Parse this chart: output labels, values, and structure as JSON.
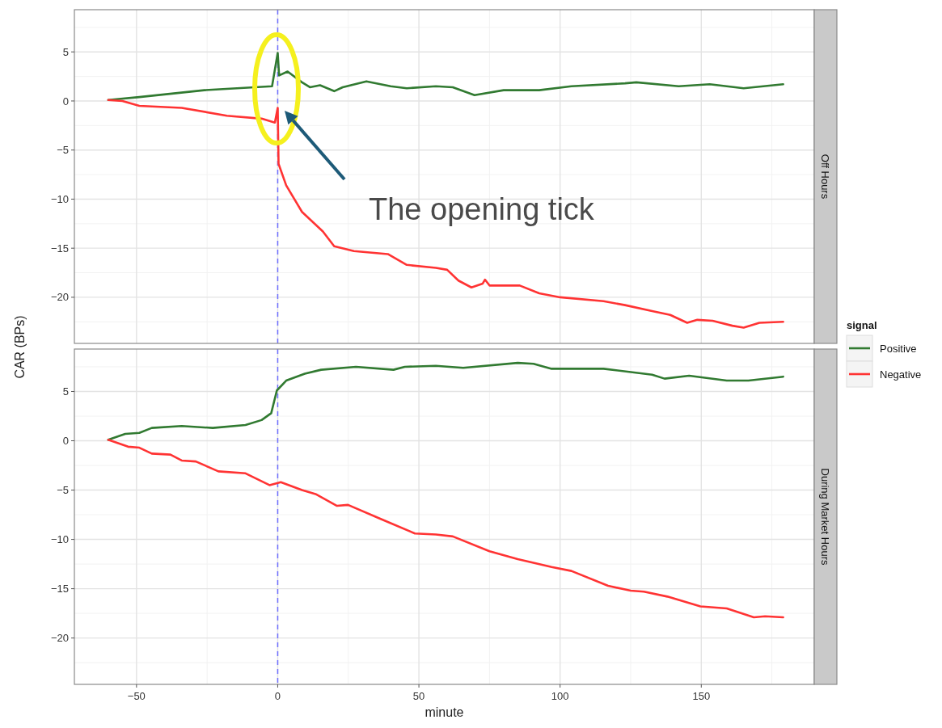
{
  "chart_data": [
    {
      "type": "line",
      "title": "Off Hours",
      "ylabel": "CAR (BPs)",
      "xlim": [
        -72,
        190
      ],
      "xticks": [
        -50,
        0,
        50,
        100,
        150
      ],
      "ylim": [
        -24.7,
        9.3
      ],
      "yticks": [
        -20,
        -15,
        -10,
        -5,
        0,
        5
      ],
      "tick_labels": "y",
      "grid": true,
      "line_style": "solid",
      "series": [
        {
          "color": "#317a31",
          "x": [
            -60,
            -49,
            -26,
            -2,
            0,
            0.5,
            3.5,
            8.6,
            11.4,
            15,
            20,
            23,
            31.4,
            40,
            45.7,
            56,
            62,
            69.7,
            80,
            92.6,
            104,
            123,
            127,
            142,
            153,
            165,
            179
          ],
          "values": [
            0.1,
            0.4,
            1.1,
            1.5,
            4.9,
            2.6,
            3.0,
            1.9,
            1.4,
            1.6,
            1.0,
            1.4,
            2.0,
            1.5,
            1.3,
            1.5,
            1.4,
            0.6,
            1.1,
            1.1,
            1.5,
            1.8,
            1.9,
            1.5,
            1.7,
            1.3,
            1.7
          ]
        },
        {
          "color": "#ff3333",
          "x": [
            -60,
            -55,
            -49,
            -34,
            -18,
            -5.7,
            -1,
            0,
            0.3,
            3,
            8.6,
            16,
            20,
            27,
            39,
            45.7,
            56,
            60,
            64,
            68.6,
            72.6,
            73.4,
            75,
            85.7,
            92.6,
            100,
            115.4,
            123,
            132.6,
            139,
            145,
            148.6,
            154,
            161,
            165,
            170.6,
            179
          ],
          "values": [
            0.1,
            0,
            -0.5,
            -0.7,
            -1.5,
            -1.8,
            -2.2,
            -0.7,
            -6.4,
            -8.6,
            -11.3,
            -13.3,
            -14.8,
            -15.3,
            -15.6,
            -16.7,
            -17.0,
            -17.2,
            -18.3,
            -19.0,
            -18.6,
            -18.2,
            -18.8,
            -18.8,
            -19.6,
            -20.0,
            -20.4,
            -20.8,
            -21.4,
            -21.8,
            -22.6,
            -22.3,
            -22.4,
            -22.9,
            -23.1,
            -22.6,
            -22.5
          ]
        }
      ],
      "ref_lines": [
        {
          "axis": "x",
          "value": 0,
          "color": "#6f6fff",
          "line_style": "dashed"
        }
      ],
      "annotations": [
        "The opening tick"
      ]
    },
    {
      "type": "line",
      "title": "During Market Hours",
      "xlabel": "minute",
      "xlim": [
        -72,
        190
      ],
      "xticks": [
        -50,
        0,
        50,
        100,
        150
      ],
      "ylim": [
        -24.7,
        9.3
      ],
      "yticks": [
        -20,
        -15,
        -10,
        -5,
        0,
        5
      ],
      "grid": true,
      "line_style": "solid",
      "legend": "right",
      "legend_title": "signal",
      "series": [
        {
          "name": "Positive",
          "color": "#317a31",
          "x": [
            -60,
            -54,
            -49,
            -44.6,
            -34,
            -23,
            -11.4,
            -5.7,
            -2.3,
            -0.3,
            3,
            9.6,
            15.4,
            27.7,
            41,
            45,
            56,
            65.7,
            85,
            90.6,
            97,
            115.4,
            132.6,
            137,
            145.7,
            159,
            166.7,
            179
          ],
          "values": [
            0.1,
            0.7,
            0.8,
            1.3,
            1.5,
            1.3,
            1.6,
            2.1,
            2.8,
            5.1,
            6.1,
            6.8,
            7.2,
            7.5,
            7.2,
            7.5,
            7.6,
            7.4,
            7.9,
            7.8,
            7.3,
            7.3,
            6.7,
            6.3,
            6.6,
            6.1,
            6.1,
            6.5
          ]
        },
        {
          "name": "Negative",
          "color": "#ff3333",
          "x": [
            -60,
            -53,
            -49,
            -44.6,
            -38,
            -34,
            -29,
            -21,
            -11.4,
            -2.9,
            1.1,
            8.6,
            13.4,
            21,
            24.9,
            36.3,
            48.6,
            56,
            62,
            75,
            85,
            97,
            104,
            117,
            125,
            129.7,
            138,
            149.7,
            159,
            168.6,
            172.6,
            179
          ],
          "values": [
            0.1,
            -0.6,
            -0.7,
            -1.3,
            -1.4,
            -2.0,
            -2.1,
            -3.1,
            -3.3,
            -4.5,
            -4.2,
            -5.0,
            -5.4,
            -6.6,
            -6.5,
            -7.9,
            -9.4,
            -9.5,
            -9.7,
            -11.2,
            -12.0,
            -12.8,
            -13.2,
            -14.7,
            -15.2,
            -15.3,
            -15.8,
            -16.8,
            -17.0,
            -17.9,
            -17.8,
            -17.9
          ]
        }
      ],
      "ref_lines": [
        {
          "axis": "x",
          "value": 0,
          "color": "#6f6fff",
          "line_style": "dashed"
        }
      ]
    }
  ]
}
